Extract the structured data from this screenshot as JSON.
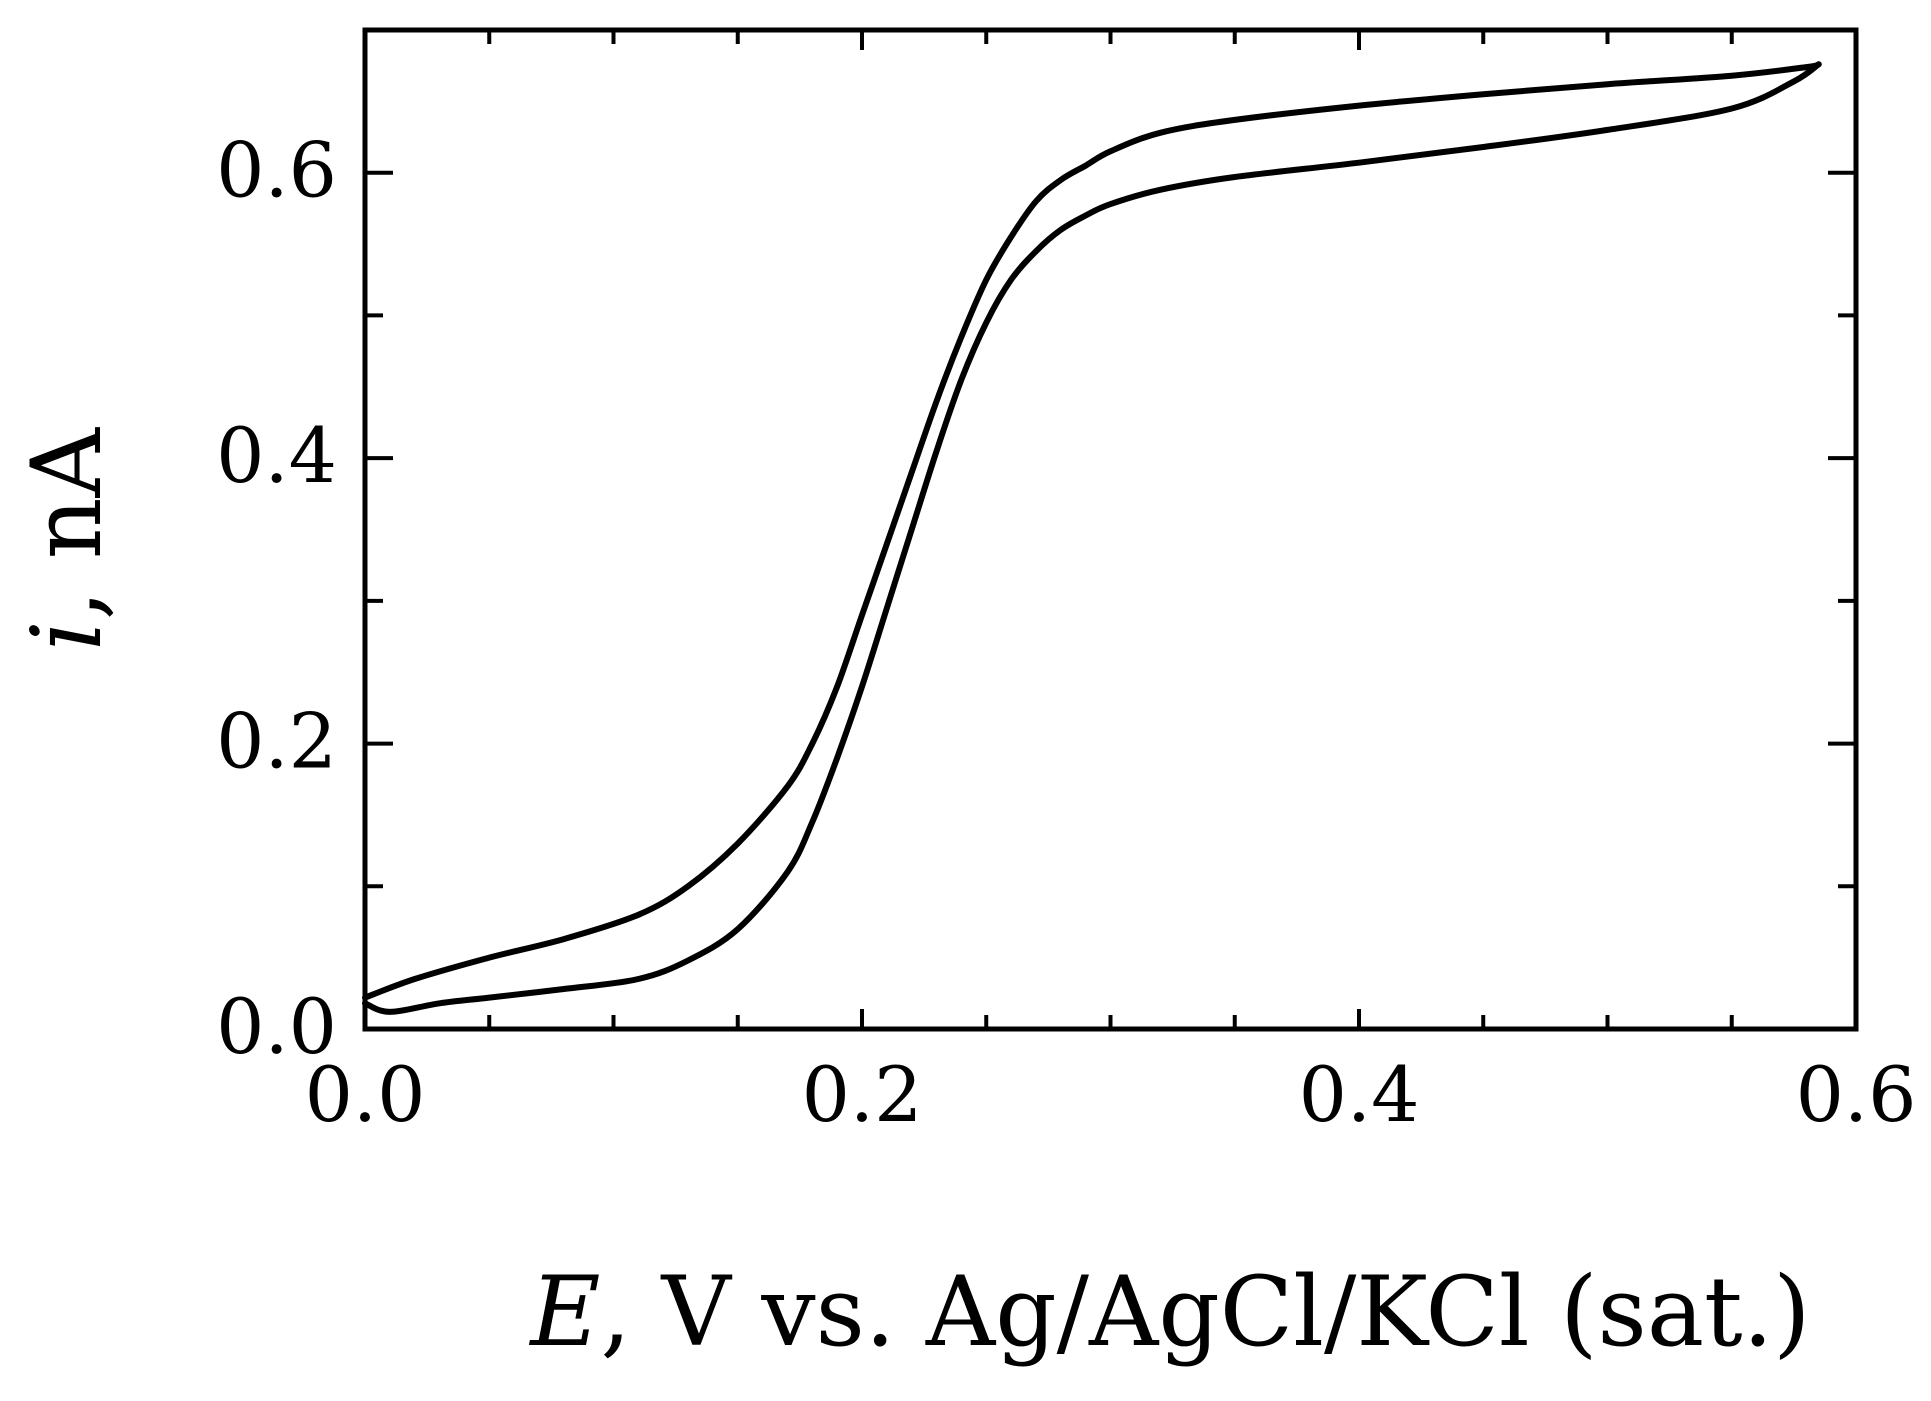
{
  "chart_data": {
    "type": "line",
    "title": "",
    "xlabel_italic": "E",
    "xlabel_rest": ", V vs. Ag/AgCl/KCl (sat.)",
    "ylabel_italic": "i",
    "ylabel_rest": ", nA",
    "xlim": [
      0.0,
      0.6
    ],
    "ylim": [
      0.0,
      0.7
    ],
    "x_ticks": [
      0.0,
      0.2,
      0.4,
      0.6
    ],
    "x_tick_labels": [
      "0.0",
      "0.2",
      "0.4",
      "0.6"
    ],
    "x_minor_step": 0.05,
    "y_ticks": [
      0.0,
      0.2,
      0.4,
      0.6
    ],
    "y_tick_labels": [
      "0.0",
      "0.2",
      "0.4",
      "0.6"
    ],
    "y_minor_step": 0.1,
    "grid": false,
    "line_color": "#000000",
    "series": [
      {
        "x": [
          0.0,
          0.02,
          0.05,
          0.08,
          0.11,
          0.13,
          0.15,
          0.17,
          0.18,
          0.19,
          0.2,
          0.21,
          0.22,
          0.23,
          0.24,
          0.25,
          0.26,
          0.27,
          0.28,
          0.29,
          0.3,
          0.32,
          0.35,
          0.4,
          0.45,
          0.5,
          0.55,
          0.58,
          0.585
        ],
        "y": [
          0.022,
          0.035,
          0.05,
          0.063,
          0.08,
          0.1,
          0.13,
          0.17,
          0.2,
          0.24,
          0.29,
          0.34,
          0.39,
          0.44,
          0.485,
          0.525,
          0.555,
          0.58,
          0.595,
          0.605,
          0.615,
          0.628,
          0.637,
          0.647,
          0.655,
          0.662,
          0.668,
          0.674,
          0.676
        ]
      },
      {
        "x": [
          0.0,
          0.01,
          0.03,
          0.05,
          0.08,
          0.11,
          0.13,
          0.15,
          0.17,
          0.18,
          0.19,
          0.2,
          0.21,
          0.22,
          0.23,
          0.24,
          0.25,
          0.26,
          0.27,
          0.28,
          0.29,
          0.3,
          0.32,
          0.35,
          0.4,
          0.45,
          0.5,
          0.55,
          0.575,
          0.585
        ],
        "y": [
          0.018,
          0.012,
          0.018,
          0.022,
          0.028,
          0.035,
          0.048,
          0.07,
          0.11,
          0.145,
          0.19,
          0.24,
          0.295,
          0.35,
          0.405,
          0.455,
          0.495,
          0.525,
          0.545,
          0.56,
          0.57,
          0.578,
          0.588,
          0.597,
          0.607,
          0.618,
          0.63,
          0.645,
          0.664,
          0.676
        ]
      }
    ]
  }
}
